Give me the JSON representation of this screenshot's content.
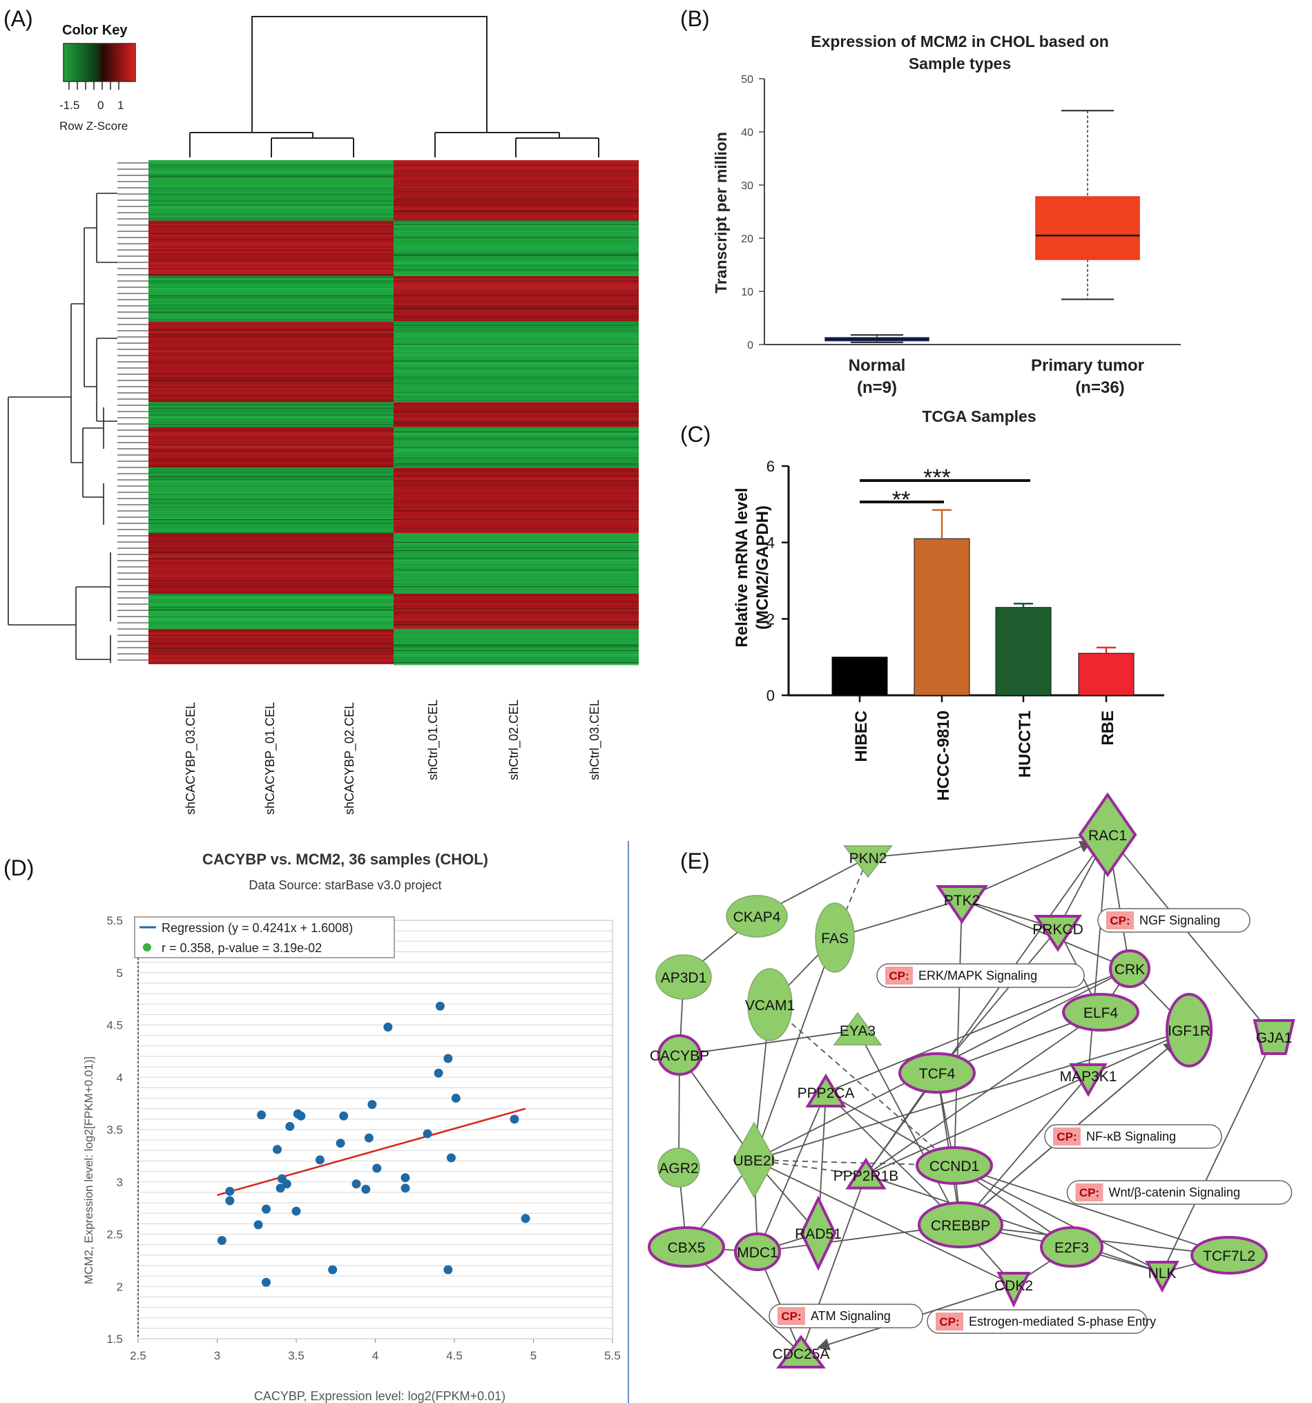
{
  "panel_labels": [
    "(A)",
    "(B)",
    "(C)",
    "(D)",
    "(E)"
  ],
  "colors": {
    "heat_green": "#1e9e3e",
    "heat_red": "#b0171c",
    "box_red": "#f0401e",
    "normal_box": "#2b3a8a",
    "bar_black": "#000000",
    "bar_orange": "#c8682a",
    "bar_green": "#1e5c2e",
    "bar_red": "#ef2530",
    "scatter_point": "#1f6aa5",
    "regression_line": "#d9231c",
    "node_fill": "#8fcc6a",
    "node_border": "#9b2a9b",
    "cp_tag": "#f4a0a0"
  },
  "heatmap": {
    "color_key_title": "Color Key",
    "color_key_ticks": [
      "-1.5",
      "0",
      "1"
    ],
    "color_key_label": "Row Z-Score",
    "samples": [
      "shCACYBP_03.CEL",
      "shCACYBP_01.CEL",
      "shCACYBP_02.CEL",
      "shCtrl_01.CEL",
      "shCtrl_02.CEL",
      "shCtrl_03.CEL"
    ]
  },
  "chart_data": [
    {
      "type": "box",
      "title": "Expression of MCM2 in CHOL based on Sample types",
      "title_lines": [
        "Expression of MCM2 in CHOL based on",
        "Sample types"
      ],
      "xlabel": "TCGA Samples",
      "ylabel": "Transcript per million",
      "ylim": [
        0,
        50
      ],
      "yticks": [
        "0",
        "10",
        "20",
        "30",
        "40",
        "50"
      ],
      "groups": [
        {
          "name": "Normal",
          "n_label": "(n=9)",
          "min": 0.4,
          "q1": 0.7,
          "median": 1.0,
          "q3": 1.3,
          "max": 1.8
        },
        {
          "name": "Primary tumor",
          "n_label": "(n=36)",
          "min": 8.5,
          "q1": 16.0,
          "median": 20.5,
          "q3": 27.8,
          "max": 44.0
        }
      ]
    },
    {
      "type": "bar",
      "ylabel_lines": [
        "Relative mRNA level",
        "(MCM2/GAPDH)"
      ],
      "ylim": [
        0,
        6
      ],
      "yticks": [
        "0",
        "2",
        "4",
        "6"
      ],
      "categories": [
        "HIBEC",
        "HCCC-9810",
        "HUCCT1",
        "RBE"
      ],
      "values": [
        1.0,
        4.1,
        2.3,
        1.1
      ],
      "errors": [
        0.0,
        0.75,
        0.1,
        0.15
      ],
      "significance": [
        "**",
        "***"
      ]
    },
    {
      "type": "scatter",
      "title": "CACYBP vs. MCM2, 36 samples (CHOL)",
      "subtitle": "Data Source: starBase v3.0 project",
      "xlabel": "CACYBP, Expression level: log2(FPKM+0.01)",
      "ylabel": "MCM2, Expression level: log2[FPKM+0.01)]",
      "xlim": [
        2.5,
        5.5
      ],
      "ylim": [
        1.5,
        5.5
      ],
      "xticks": [
        "2.5",
        "3",
        "3.5",
        "4",
        "4.5",
        "5",
        "5.5"
      ],
      "yticks": [
        "1.5",
        "2",
        "2.5",
        "3",
        "3.5",
        "4",
        "4.5",
        "5",
        "5.5"
      ],
      "legend": {
        "regression": "Regression (y = 0.4241x + 1.6008)",
        "stats": "r = 0.358, p-value = 3.19e-02"
      },
      "regression": {
        "slope": 0.4241,
        "intercept": 1.6008,
        "x_range": [
          3.0,
          4.95
        ]
      },
      "points": [
        [
          3.03,
          2.44
        ],
        [
          3.08,
          2.91
        ],
        [
          3.08,
          2.82
        ],
        [
          3.26,
          2.59
        ],
        [
          3.28,
          3.64
        ],
        [
          3.31,
          2.74
        ],
        [
          3.31,
          2.04
        ],
        [
          3.38,
          3.31
        ],
        [
          3.4,
          2.94
        ],
        [
          3.41,
          3.03
        ],
        [
          3.44,
          2.98
        ],
        [
          3.46,
          3.53
        ],
        [
          3.5,
          2.72
        ],
        [
          3.51,
          3.65
        ],
        [
          3.53,
          3.63
        ],
        [
          3.65,
          3.21
        ],
        [
          3.73,
          2.16
        ],
        [
          3.78,
          3.37
        ],
        [
          3.8,
          3.63
        ],
        [
          3.88,
          2.98
        ],
        [
          3.94,
          2.93
        ],
        [
          3.96,
          3.42
        ],
        [
          3.98,
          3.74
        ],
        [
          4.01,
          3.13
        ],
        [
          4.08,
          4.48
        ],
        [
          4.19,
          3.04
        ],
        [
          4.19,
          2.94
        ],
        [
          4.33,
          3.46
        ],
        [
          4.4,
          4.04
        ],
        [
          4.41,
          4.68
        ],
        [
          4.46,
          4.18
        ],
        [
          4.46,
          2.16
        ],
        [
          4.48,
          3.23
        ],
        [
          4.51,
          3.8
        ],
        [
          4.88,
          3.6
        ],
        [
          4.95,
          2.65
        ]
      ]
    }
  ],
  "network": {
    "nodes": [
      {
        "id": "RAC1",
        "label": "RAC1"
      },
      {
        "id": "PKN2",
        "label": "PKN2"
      },
      {
        "id": "PTK2",
        "label": "PTK2"
      },
      {
        "id": "CKAP4",
        "label": "CKAP4"
      },
      {
        "id": "FAS",
        "label": "FAS"
      },
      {
        "id": "PRKCD",
        "label": "PRKCD"
      },
      {
        "id": "AP3D1",
        "label": "AP3D1"
      },
      {
        "id": "CRK",
        "label": "CRK"
      },
      {
        "id": "VCAM1",
        "label": "VCAM1"
      },
      {
        "id": "ELF4",
        "label": "ELF4"
      },
      {
        "id": "IGF1R",
        "label": "IGF1R"
      },
      {
        "id": "GJA1",
        "label": "GJA1"
      },
      {
        "id": "EYA3",
        "label": "EYA3"
      },
      {
        "id": "CACYBP",
        "label": "CACYBP"
      },
      {
        "id": "TCF4",
        "label": "TCF4"
      },
      {
        "id": "MAP3K1",
        "label": "MAP3K1"
      },
      {
        "id": "PPP2CA",
        "label": "PPP2CA"
      },
      {
        "id": "UBE2I",
        "label": "UBE2I"
      },
      {
        "id": "AGR2",
        "label": "AGR2"
      },
      {
        "id": "CCND1",
        "label": "CCND1"
      },
      {
        "id": "PPP2R1B",
        "label": "PPP2R1B"
      },
      {
        "id": "CREBBP",
        "label": "CREBBP"
      },
      {
        "id": "CBX5",
        "label": "CBX5"
      },
      {
        "id": "MDC1",
        "label": "MDC1"
      },
      {
        "id": "RAD51",
        "label": "RAD51"
      },
      {
        "id": "E2F3",
        "label": "E2F3"
      },
      {
        "id": "NLK",
        "label": "NLK"
      },
      {
        "id": "TCF7L2",
        "label": "TCF7L2"
      },
      {
        "id": "CDK2",
        "label": "CDK2"
      },
      {
        "id": "CDC25A",
        "label": "CDC25A"
      }
    ],
    "pathways": [
      {
        "tag": "CP:",
        "label": "NGF Signaling"
      },
      {
        "tag": "CP:",
        "label": "ERK/MAPK Signaling"
      },
      {
        "tag": "CP:",
        "label": "NF-κB Signaling"
      },
      {
        "tag": "CP:",
        "label": "Wnt/β-catenin Signaling"
      },
      {
        "tag": "CP:",
        "label": "ATM Signaling"
      },
      {
        "tag": "CP:",
        "label": "Estrogen-mediated S-phase Entry"
      }
    ]
  }
}
